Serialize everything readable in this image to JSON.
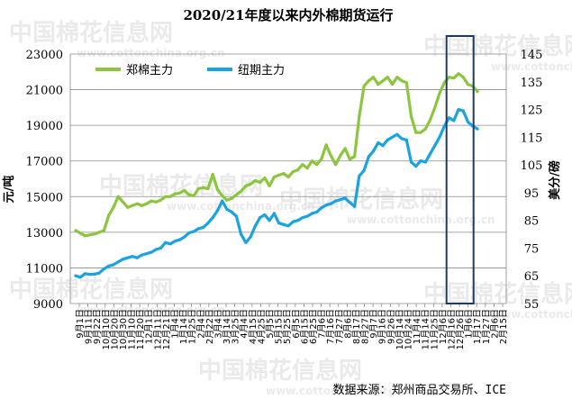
{
  "chart_data": {
    "type": "line",
    "title": "2020/21年度以来内外棉期货运行",
    "ylabel_left": "元/吨",
    "ylabel_right": "美分/磅",
    "source": "数据来源：郑州商品交易所、ICE",
    "watermark_text": "中国棉花信息网",
    "watermark_url": "www.cottonchina.org.cn",
    "ylim_left": [
      9000,
      23000
    ],
    "yticks_left": [
      "23000",
      "21000",
      "19000",
      "17000",
      "15000",
      "13000",
      "11000",
      "9000"
    ],
    "ylim_right": [
      55,
      145
    ],
    "yticks_right": [
      "145",
      "135",
      "125",
      "115",
      "105",
      "95",
      "85",
      "75",
      "65",
      "55"
    ],
    "x_tick_labels": [
      "9月1日",
      "9月11日",
      "9月22日",
      "10月10日",
      "10月20日",
      "10月30日",
      "11月10日",
      "11月20日",
      "12月1日",
      "12月11日",
      "12月21日",
      "1月4日",
      "1月14日",
      "1月25日",
      "2月4日",
      "2月22日",
      "3月4日",
      "3月14日",
      "3月25日",
      "4月4日",
      "4月15日",
      "4月25日",
      "5月5日",
      "5月15日",
      "5月25日",
      "6月5日",
      "6月15日",
      "6月25日",
      "7月6日",
      "7月16日",
      "7月27日",
      "8月6日",
      "8月17日",
      "8月27日",
      "9月7日",
      "9月16日",
      "9月26日",
      "10月14日",
      "10月24日",
      "11月4日",
      "11月14日",
      "11月25日",
      "12月6日",
      "12月16日",
      "12月26日",
      "1月6日",
      "1月17日",
      "1月27日",
      "2月6日",
      "2月15日"
    ],
    "grid": true,
    "legend_position": "top-left",
    "highlight_box_x_range": [
      0.863,
      0.925
    ],
    "series": [
      {
        "name": "郑棉主力",
        "axis": "left",
        "color": "#8cc63f",
        "values": [
          [
            0,
            13100
          ],
          [
            1,
            12950
          ],
          [
            2,
            12800
          ],
          [
            3,
            12850
          ],
          [
            4,
            12900
          ],
          [
            5,
            13000
          ],
          [
            6,
            13100
          ],
          [
            7,
            13950
          ],
          [
            8,
            14400
          ],
          [
            9,
            15000
          ],
          [
            10,
            14700
          ],
          [
            11,
            14400
          ],
          [
            12,
            14500
          ],
          [
            13,
            14600
          ],
          [
            14,
            14500
          ],
          [
            15,
            14600
          ],
          [
            16,
            14750
          ],
          [
            17,
            14700
          ],
          [
            18,
            14800
          ],
          [
            19,
            15000
          ],
          [
            20,
            15000
          ],
          [
            21,
            15150
          ],
          [
            22,
            15200
          ],
          [
            23,
            15350
          ],
          [
            24,
            15100
          ],
          [
            25,
            15050
          ],
          [
            26,
            15450
          ],
          [
            27,
            15500
          ],
          [
            28,
            15450
          ],
          [
            29,
            16250
          ],
          [
            30,
            15400
          ],
          [
            31,
            15050
          ],
          [
            32,
            14800
          ],
          [
            33,
            14900
          ],
          [
            34,
            15100
          ],
          [
            35,
            15300
          ],
          [
            36,
            15600
          ],
          [
            37,
            15700
          ],
          [
            38,
            15900
          ],
          [
            39,
            15800
          ],
          [
            40,
            16050
          ],
          [
            41,
            15600
          ],
          [
            42,
            16100
          ],
          [
            43,
            16200
          ],
          [
            44,
            16300
          ],
          [
            45,
            16100
          ],
          [
            46,
            16400
          ],
          [
            47,
            16500
          ],
          [
            48,
            16800
          ],
          [
            49,
            16600
          ],
          [
            50,
            17000
          ],
          [
            51,
            16800
          ],
          [
            52,
            17100
          ],
          [
            53,
            17900
          ],
          [
            54,
            17300
          ],
          [
            55,
            16800
          ],
          [
            56,
            17300
          ],
          [
            57,
            17700
          ],
          [
            58,
            17100
          ],
          [
            59,
            17250
          ],
          [
            60,
            19500
          ],
          [
            61,
            21200
          ],
          [
            62,
            21500
          ],
          [
            63,
            21700
          ],
          [
            64,
            21300
          ],
          [
            65,
            21500
          ],
          [
            66,
            21700
          ],
          [
            67,
            21300
          ],
          [
            68,
            21700
          ],
          [
            69,
            21500
          ],
          [
            70,
            21400
          ],
          [
            71,
            19500
          ],
          [
            72,
            18600
          ],
          [
            73,
            18600
          ],
          [
            74,
            18800
          ],
          [
            75,
            19300
          ],
          [
            76,
            20000
          ],
          [
            77,
            20800
          ],
          [
            78,
            21400
          ],
          [
            79,
            21700
          ],
          [
            80,
            21650
          ],
          [
            81,
            21900
          ],
          [
            82,
            21700
          ],
          [
            83,
            21300
          ],
          [
            84,
            21200
          ],
          [
            85,
            20900
          ]
        ]
      },
      {
        "name": "纽期主力",
        "axis": "right",
        "color": "#1aa3e0",
        "values": [
          [
            0,
            65.0
          ],
          [
            1,
            64.5
          ],
          [
            2,
            65.8
          ],
          [
            3,
            65.5
          ],
          [
            4,
            65.6
          ],
          [
            5,
            66.0
          ],
          [
            6,
            67.5
          ],
          [
            7,
            68.5
          ],
          [
            8,
            69.0
          ],
          [
            9,
            70.0
          ],
          [
            10,
            71.0
          ],
          [
            11,
            71.5
          ],
          [
            12,
            72.0
          ],
          [
            13,
            71.5
          ],
          [
            14,
            72.5
          ],
          [
            15,
            73.0
          ],
          [
            16,
            73.5
          ],
          [
            17,
            74.5
          ],
          [
            18,
            75.0
          ],
          [
            19,
            77.0
          ],
          [
            20,
            76.5
          ],
          [
            21,
            77.5
          ],
          [
            22,
            78.0
          ],
          [
            23,
            79.0
          ],
          [
            24,
            80.5
          ],
          [
            25,
            81.0
          ],
          [
            26,
            82.0
          ],
          [
            27,
            82.5
          ],
          [
            28,
            84.0
          ],
          [
            29,
            86.0
          ],
          [
            30,
            88.5
          ],
          [
            31,
            92.0
          ],
          [
            32,
            89.0
          ],
          [
            33,
            88.0
          ],
          [
            34,
            86.5
          ],
          [
            35,
            80.0
          ],
          [
            36,
            77.0
          ],
          [
            37,
            79.0
          ],
          [
            38,
            83.0
          ],
          [
            39,
            86.0
          ],
          [
            40,
            87.0
          ],
          [
            41,
            85.0
          ],
          [
            42,
            87.5
          ],
          [
            43,
            84.0
          ],
          [
            44,
            83.5
          ],
          [
            45,
            83.0
          ],
          [
            46,
            84.5
          ],
          [
            47,
            85.0
          ],
          [
            48,
            86.0
          ],
          [
            49,
            86.5
          ],
          [
            50,
            87.5
          ],
          [
            51,
            88.0
          ],
          [
            52,
            89.5
          ],
          [
            53,
            90.5
          ],
          [
            54,
            91.0
          ],
          [
            55,
            92.0
          ],
          [
            56,
            92.5
          ],
          [
            57,
            93.0
          ],
          [
            58,
            91.5
          ],
          [
            59,
            90.0
          ],
          [
            60,
            101.0
          ],
          [
            61,
            103.0
          ],
          [
            62,
            108.0
          ],
          [
            63,
            110.0
          ],
          [
            64,
            113.0
          ],
          [
            65,
            112.0
          ],
          [
            66,
            114.0
          ],
          [
            67,
            115.0
          ],
          [
            68,
            116.0
          ],
          [
            69,
            114.5
          ],
          [
            70,
            114.0
          ],
          [
            71,
            106.0
          ],
          [
            72,
            104.5
          ],
          [
            73,
            106.5
          ],
          [
            74,
            106.0
          ],
          [
            75,
            109.0
          ],
          [
            76,
            112.0
          ],
          [
            77,
            115.0
          ],
          [
            78,
            119.0
          ],
          [
            79,
            122.0
          ],
          [
            80,
            121.0
          ],
          [
            81,
            125.0
          ],
          [
            82,
            124.5
          ],
          [
            83,
            120.5
          ],
          [
            84,
            119.0
          ],
          [
            85,
            118.0
          ]
        ]
      }
    ]
  }
}
